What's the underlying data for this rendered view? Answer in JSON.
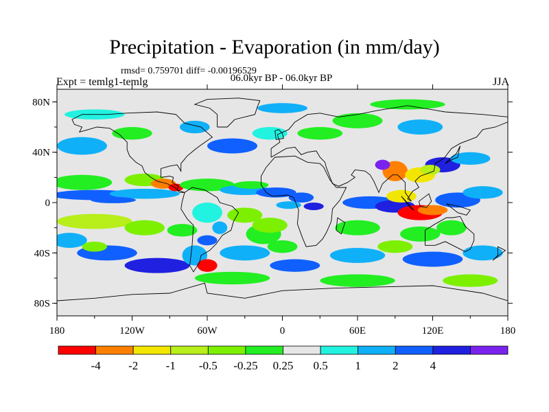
{
  "map": {
    "title": "Precipitation - Evaporation (in mm/day)",
    "stats": "rmsd= 0.759701 diff= -0.00196529",
    "subtitle": "06.0kyr BP - 06.0kyr BP",
    "experiment": "Expt = temlg1-temlg",
    "season": "JJA",
    "x_ticks": [
      {
        "value": -180,
        "label": "180"
      },
      {
        "value": -120,
        "label": "120W"
      },
      {
        "value": -60,
        "label": "60W"
      },
      {
        "value": 0,
        "label": "0"
      },
      {
        "value": 60,
        "label": "60E"
      },
      {
        "value": 120,
        "label": "120E"
      },
      {
        "value": 180,
        "label": "180"
      }
    ],
    "y_ticks": [
      {
        "value": 80,
        "label": "80N"
      },
      {
        "value": 40,
        "label": "40N"
      },
      {
        "value": 0,
        "label": "0"
      },
      {
        "value": -40,
        "label": "40S"
      },
      {
        "value": -80,
        "label": "80S"
      }
    ],
    "lon_range": [
      -180,
      180
    ],
    "lat_range": [
      -90,
      90
    ],
    "background_color": "#e6e6e6",
    "colorbar": {
      "colors": [
        "#ff0000",
        "#ff8000",
        "#f2e600",
        "#b8ee1a",
        "#7cf000",
        "#22ee22",
        "#e6e6e6",
        "#22f2e0",
        "#10b0f8",
        "#1060ff",
        "#2020e0",
        "#7a22ee"
      ],
      "labels": [
        "-4",
        "-2",
        "-1",
        "-0.5",
        "-0.25",
        "0.25",
        "0.5",
        "1",
        "2",
        "4"
      ]
    }
  }
}
